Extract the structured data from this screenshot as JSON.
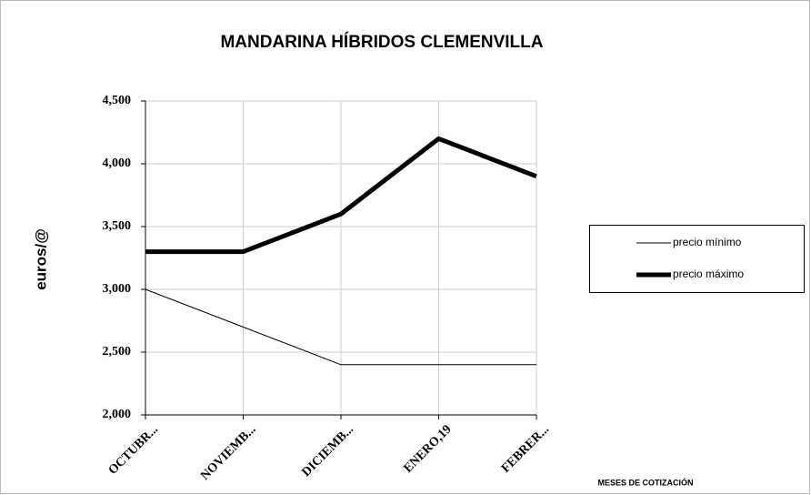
{
  "chart_data": {
    "type": "line",
    "title": "MANDARINA HÍBRIDOS CLEMENVILLA",
    "y_label": "euros/@",
    "x_label": "MESES DE COTIZACIÓN",
    "categories": [
      "OCTUBR...",
      "NOVIEMB...",
      "DICIEMB...",
      "ENERO,19",
      "FEBRER..."
    ],
    "series": [
      {
        "name": "precio mínimo",
        "color": "#000000",
        "width": 1,
        "values": [
          3000,
          2700,
          2400,
          2400,
          2400
        ]
      },
      {
        "name": "precio máximo",
        "color": "#000000",
        "width": 5,
        "values": [
          3300,
          3300,
          3600,
          4200,
          3900
        ]
      }
    ],
    "ylim": [
      2000,
      4500
    ],
    "yticks": [
      {
        "value": 2000,
        "label": "2,000"
      },
      {
        "value": 2500,
        "label": "2,500"
      },
      {
        "value": 3000,
        "label": "3,000"
      },
      {
        "value": 3500,
        "label": "3,500"
      },
      {
        "value": 4000,
        "label": "4,000"
      },
      {
        "value": 4500,
        "label": "4,500"
      }
    ],
    "grid": true,
    "legend": "right"
  }
}
